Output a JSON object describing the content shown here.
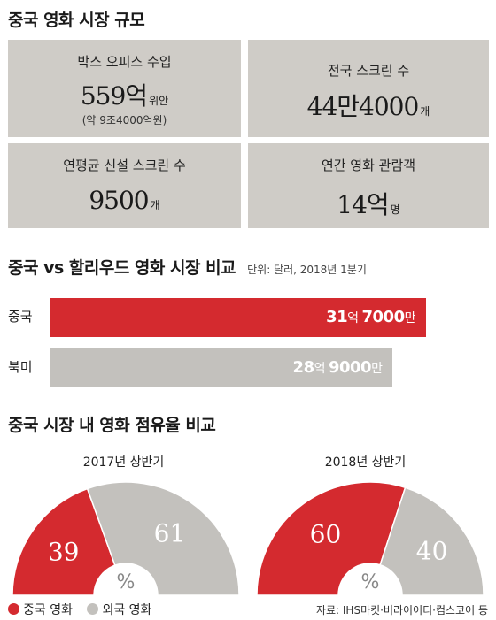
{
  "section1": {
    "title": "중국 영화 시장 규모",
    "boxes": [
      {
        "label": "박스 오피스 수입",
        "value": "559억",
        "unit": "위안",
        "sub": "(약 9조4000억원)"
      },
      {
        "label": "전국 스크린 수",
        "value": "44만4000",
        "unit": "개",
        "sub": ""
      },
      {
        "label": "연평균 신설 스크린 수",
        "value": "9500",
        "unit": "개",
        "sub": ""
      },
      {
        "label": "연간 영화 관람객",
        "value": "14억",
        "unit": "명",
        "sub": ""
      }
    ]
  },
  "section2": {
    "title": "중국 vs 할리우드 영화 시장 비교",
    "note": "단위: 달러, 2018년 1분기"
  },
  "section3": {
    "title": "중국 시장 내 영화 점유율 비교",
    "percent_symbol": "%"
  },
  "legend": {
    "china": "중국 영화",
    "foreign": "외국 영화"
  },
  "source": "자료: IHS마킷·버라이어티·컴스코어 등",
  "colors": {
    "red": "#d42a2f",
    "gray": "#c3c1bd",
    "box": "#cfccc7"
  },
  "chart_data": [
    {
      "type": "bar",
      "orientation": "horizontal",
      "title": "중국 vs 할리우드 영화 시장 비교",
      "categories": [
        "중국",
        "북미"
      ],
      "values": [
        31.7,
        28.9
      ],
      "value_labels": [
        {
          "num1": "31",
          "u1": "억 ",
          "num2": "7000",
          "u2": "만"
        },
        {
          "num1": "28",
          "u1": "억 ",
          "num2": "9000",
          "u2": "만"
        }
      ],
      "unit_note": "단위: 달러, 2018년 1분기",
      "colors": [
        "#d42a2f",
        "#c3c1bd"
      ]
    },
    {
      "type": "pie",
      "shape": "half-donut",
      "title": "2017년 상반기",
      "labels": [
        "중국 영화",
        "외국 영화"
      ],
      "values": [
        39,
        61
      ]
    },
    {
      "type": "pie",
      "shape": "half-donut",
      "title": "2018년 상반기",
      "labels": [
        "중국 영화",
        "외국 영화"
      ],
      "values": [
        60,
        40
      ]
    }
  ]
}
